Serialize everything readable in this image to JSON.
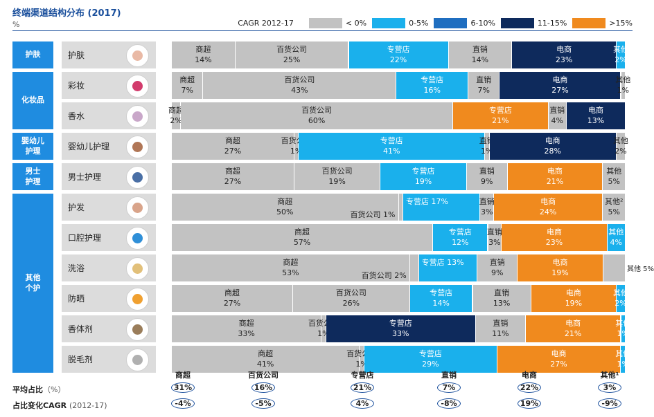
{
  "title": "终端渠道结构分布 (2017)",
  "unit": "%",
  "colors": {
    "lt0": "#c2c2c2",
    "g0_5": "#1ab0ec",
    "g6_10": "#1f6ec0",
    "g11_15": "#0e2a5c",
    "gt15": "#f08a1e",
    "group_bg": "#1f8ce0",
    "row_label_bg": "#dcdcdc"
  },
  "legend": {
    "title": "CAGR 2012-17",
    "items": [
      {
        "label": "< 0%",
        "color": "#c2c2c2"
      },
      {
        "label": "0-5%",
        "color": "#1ab0ec"
      },
      {
        "label": "6-10%",
        "color": "#1f6ec0"
      },
      {
        "label": "11-15%",
        "color": "#0e2a5c"
      },
      {
        "label": ">15%",
        "color": "#f08a1e"
      }
    ]
  },
  "groups": [
    {
      "label": "护肤",
      "rows": [
        0,
        0
      ]
    },
    {
      "label": "化妆品",
      "rows": [
        1,
        2
      ]
    },
    {
      "label": "婴幼儿\n护理",
      "rows": [
        3,
        3
      ]
    },
    {
      "label": "男士\n护理",
      "rows": [
        4,
        4
      ]
    },
    {
      "label": "其他\n个护",
      "rows": [
        5,
        10
      ]
    }
  ],
  "chart_data": {
    "type": "bar",
    "orientation": "horizontal",
    "stacked": true,
    "normalized": true,
    "categories": [
      "护肤",
      "彩妆",
      "香水",
      "婴幼儿护理",
      "男士护理",
      "护发",
      "口腔护理",
      "洗浴",
      "防晒",
      "香体剂",
      "脱毛剂"
    ],
    "icons": [
      "hand-cream-icon",
      "lipstick-icon",
      "perfume-icon",
      "baby-icon",
      "razor-icon",
      "hair-icon",
      "toothbrush-icon",
      "soap-icon",
      "sunscreen-icon",
      "deodorant-icon",
      "hair-removal-icon"
    ],
    "rows": [
      {
        "segments": [
          {
            "name": "商超",
            "value": 14,
            "band": "lt0"
          },
          {
            "name": "百货公司",
            "value": 25,
            "band": "lt0"
          },
          {
            "name": "专营店",
            "value": 22,
            "band": "g0_5"
          },
          {
            "name": "直销",
            "value": 14,
            "band": "lt0"
          },
          {
            "name": "电商",
            "value": 23,
            "band": "g11_15"
          },
          {
            "name": "其他",
            "value": 2,
            "band": "g0_5"
          }
        ]
      },
      {
        "segments": [
          {
            "name": "商超",
            "value": 7,
            "band": "lt0"
          },
          {
            "name": "百货公司",
            "value": 43,
            "band": "lt0"
          },
          {
            "name": "专营店",
            "value": 16,
            "band": "g0_5"
          },
          {
            "name": "直销",
            "value": 7,
            "band": "lt0"
          },
          {
            "name": "电商",
            "value": 27,
            "band": "g11_15"
          },
          {
            "name": "其他",
            "value": 1,
            "band": "lt0"
          }
        ]
      },
      {
        "segments": [
          {
            "name": "商超",
            "value": 2,
            "band": "lt0"
          },
          {
            "name": "百货公司",
            "value": 60,
            "band": "lt0"
          },
          {
            "name": "专营店",
            "value": 21,
            "band": "gt15"
          },
          {
            "name": "直销",
            "value": 4,
            "band": "lt0"
          },
          {
            "name": "电商",
            "value": 13,
            "band": "g11_15"
          }
        ]
      },
      {
        "segments": [
          {
            "name": "商超",
            "value": 27,
            "band": "lt0"
          },
          {
            "name": "百货公司",
            "value": 1,
            "band": "lt0"
          },
          {
            "name": "专营店",
            "value": 41,
            "band": "g0_5"
          },
          {
            "name": "直销",
            "value": 1,
            "band": "lt0"
          },
          {
            "name": "电商",
            "value": 28,
            "band": "g11_15"
          },
          {
            "name": "其他",
            "value": 2,
            "band": "lt0"
          }
        ]
      },
      {
        "segments": [
          {
            "name": "商超",
            "value": 27,
            "band": "lt0"
          },
          {
            "name": "百货公司",
            "value": 19,
            "band": "lt0"
          },
          {
            "name": "专营店",
            "value": 19,
            "band": "g0_5"
          },
          {
            "name": "直销",
            "value": 9,
            "band": "lt0"
          },
          {
            "name": "电商",
            "value": 21,
            "band": "gt15"
          },
          {
            "name": "其他",
            "value": 5,
            "band": "lt0"
          }
        ]
      },
      {
        "segments": [
          {
            "name": "商超",
            "value": 50,
            "band": "lt0"
          },
          {
            "name": "百货公司",
            "value": 1,
            "band": "lt0",
            "label_text": "百货公司 1%"
          },
          {
            "name": "专营店",
            "value": 17,
            "band": "g0_5",
            "label_text": "专营店 17%"
          },
          {
            "name": "直销",
            "value": 3,
            "band": "lt0"
          },
          {
            "name": "电商",
            "value": 24,
            "band": "gt15"
          },
          {
            "name": "其他²",
            "value": 5,
            "band": "lt0"
          }
        ]
      },
      {
        "segments": [
          {
            "name": "商超",
            "value": 57,
            "band": "lt0"
          },
          {
            "name": "专营店",
            "value": 12,
            "band": "g0_5"
          },
          {
            "name": "直销",
            "value": 3,
            "band": "lt0"
          },
          {
            "name": "电商",
            "value": 23,
            "band": "gt15"
          },
          {
            "name": "其他",
            "value": 4,
            "band": "g0_5"
          }
        ]
      },
      {
        "segments": [
          {
            "name": "商超",
            "value": 53,
            "band": "lt0"
          },
          {
            "name": "百货公司",
            "value": 2,
            "band": "lt0",
            "label_text": "百货公司 2%"
          },
          {
            "name": "专营店",
            "value": 13,
            "band": "g0_5",
            "label_text": "专营店 13%"
          },
          {
            "name": "直销",
            "value": 9,
            "band": "lt0"
          },
          {
            "name": "电商",
            "value": 19,
            "band": "gt15"
          },
          {
            "name": "其他",
            "value": 5,
            "band": "lt0",
            "label_text": "其他 5%"
          }
        ]
      },
      {
        "segments": [
          {
            "name": "商超",
            "value": 27,
            "band": "lt0"
          },
          {
            "name": "百货公司",
            "value": 26,
            "band": "lt0"
          },
          {
            "name": "专营店",
            "value": 14,
            "band": "g0_5"
          },
          {
            "name": "直销",
            "value": 13,
            "band": "lt0"
          },
          {
            "name": "电商",
            "value": 19,
            "band": "gt15"
          },
          {
            "name": "其他",
            "value": 2,
            "band": "g0_5"
          }
        ]
      },
      {
        "segments": [
          {
            "name": "商超",
            "value": 33,
            "band": "lt0"
          },
          {
            "name": "百货公司",
            "value": 1,
            "band": "lt0"
          },
          {
            "name": "专营店",
            "value": 33,
            "band": "g11_15"
          },
          {
            "name": "直销",
            "value": 11,
            "band": "lt0"
          },
          {
            "name": "电商",
            "value": 21,
            "band": "gt15"
          },
          {
            "name": "其他",
            "value": 1,
            "band": "g0_5"
          }
        ]
      },
      {
        "segments": [
          {
            "name": "商超",
            "value": 41,
            "band": "lt0"
          },
          {
            "name": "百货公司",
            "value": 1,
            "band": "lt0"
          },
          {
            "name": "专营店",
            "value": 29,
            "band": "g0_5"
          },
          {
            "name": "电商",
            "value": 27,
            "band": "gt15"
          },
          {
            "name": "其他",
            "value": 1,
            "band": "g0_5"
          }
        ]
      }
    ],
    "summary": {
      "channels": [
        "商超",
        "百货公司",
        "专营店",
        "直销",
        "电商",
        "其他¹"
      ],
      "avg_share_label": "平均占比",
      "avg_share_unit": "（%）",
      "avg_share": [
        "31%",
        "16%",
        "21%",
        "7%",
        "22%",
        "3%"
      ],
      "cagr_label": "占比变化CAGR",
      "cagr_period": "(2012-17)",
      "cagr": [
        "-4%",
        "-5%",
        "4%",
        "-8%",
        "19%",
        "-9%"
      ]
    }
  }
}
